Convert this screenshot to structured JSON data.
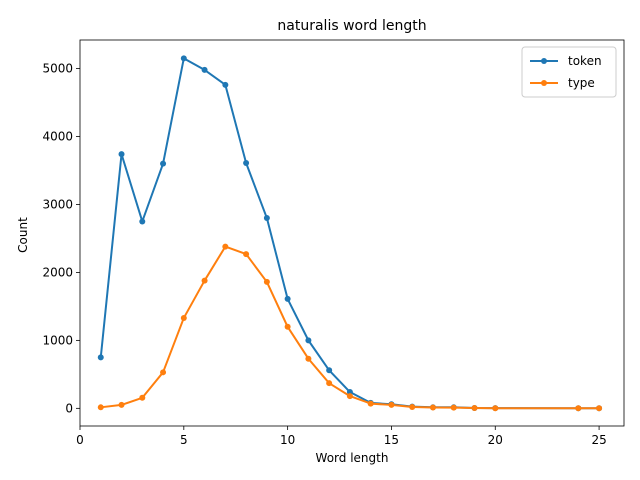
{
  "chart_data": {
    "type": "line",
    "title": "naturalis word length",
    "xlabel": "Word length",
    "ylabel": "Count",
    "xlim": [
      0,
      26.2
    ],
    "ylim": [
      -260,
      5420
    ],
    "xticks": [
      0,
      5,
      10,
      15,
      20,
      25
    ],
    "yticks": [
      0,
      1000,
      2000,
      3000,
      4000,
      5000
    ],
    "grid": false,
    "legend_position": "top-right",
    "series": [
      {
        "name": "token",
        "color": "#1f77b4",
        "points": [
          [
            1,
            750
          ],
          [
            2,
            3740
          ],
          [
            3,
            2750
          ],
          [
            4,
            3600
          ],
          [
            5,
            5150
          ],
          [
            6,
            4980
          ],
          [
            7,
            4760
          ],
          [
            8,
            3610
          ],
          [
            9,
            2800
          ],
          [
            10,
            1610
          ],
          [
            11,
            1000
          ],
          [
            12,
            560
          ],
          [
            13,
            240
          ],
          [
            14,
            80
          ],
          [
            15,
            60
          ],
          [
            16,
            25
          ],
          [
            17,
            15
          ],
          [
            18,
            15
          ],
          [
            19,
            5
          ],
          [
            20,
            3
          ],
          [
            24,
            2
          ],
          [
            25,
            2
          ]
        ]
      },
      {
        "name": "type",
        "color": "#ff7f0e",
        "points": [
          [
            1,
            15
          ],
          [
            2,
            50
          ],
          [
            3,
            155
          ],
          [
            4,
            530
          ],
          [
            5,
            1330
          ],
          [
            6,
            1880
          ],
          [
            7,
            2380
          ],
          [
            8,
            2270
          ],
          [
            9,
            1860
          ],
          [
            10,
            1200
          ],
          [
            11,
            730
          ],
          [
            12,
            370
          ],
          [
            13,
            180
          ],
          [
            14,
            70
          ],
          [
            15,
            50
          ],
          [
            16,
            20
          ],
          [
            17,
            12
          ],
          [
            18,
            10
          ],
          [
            19,
            4
          ],
          [
            20,
            2
          ],
          [
            24,
            1
          ],
          [
            25,
            1
          ]
        ]
      }
    ]
  }
}
